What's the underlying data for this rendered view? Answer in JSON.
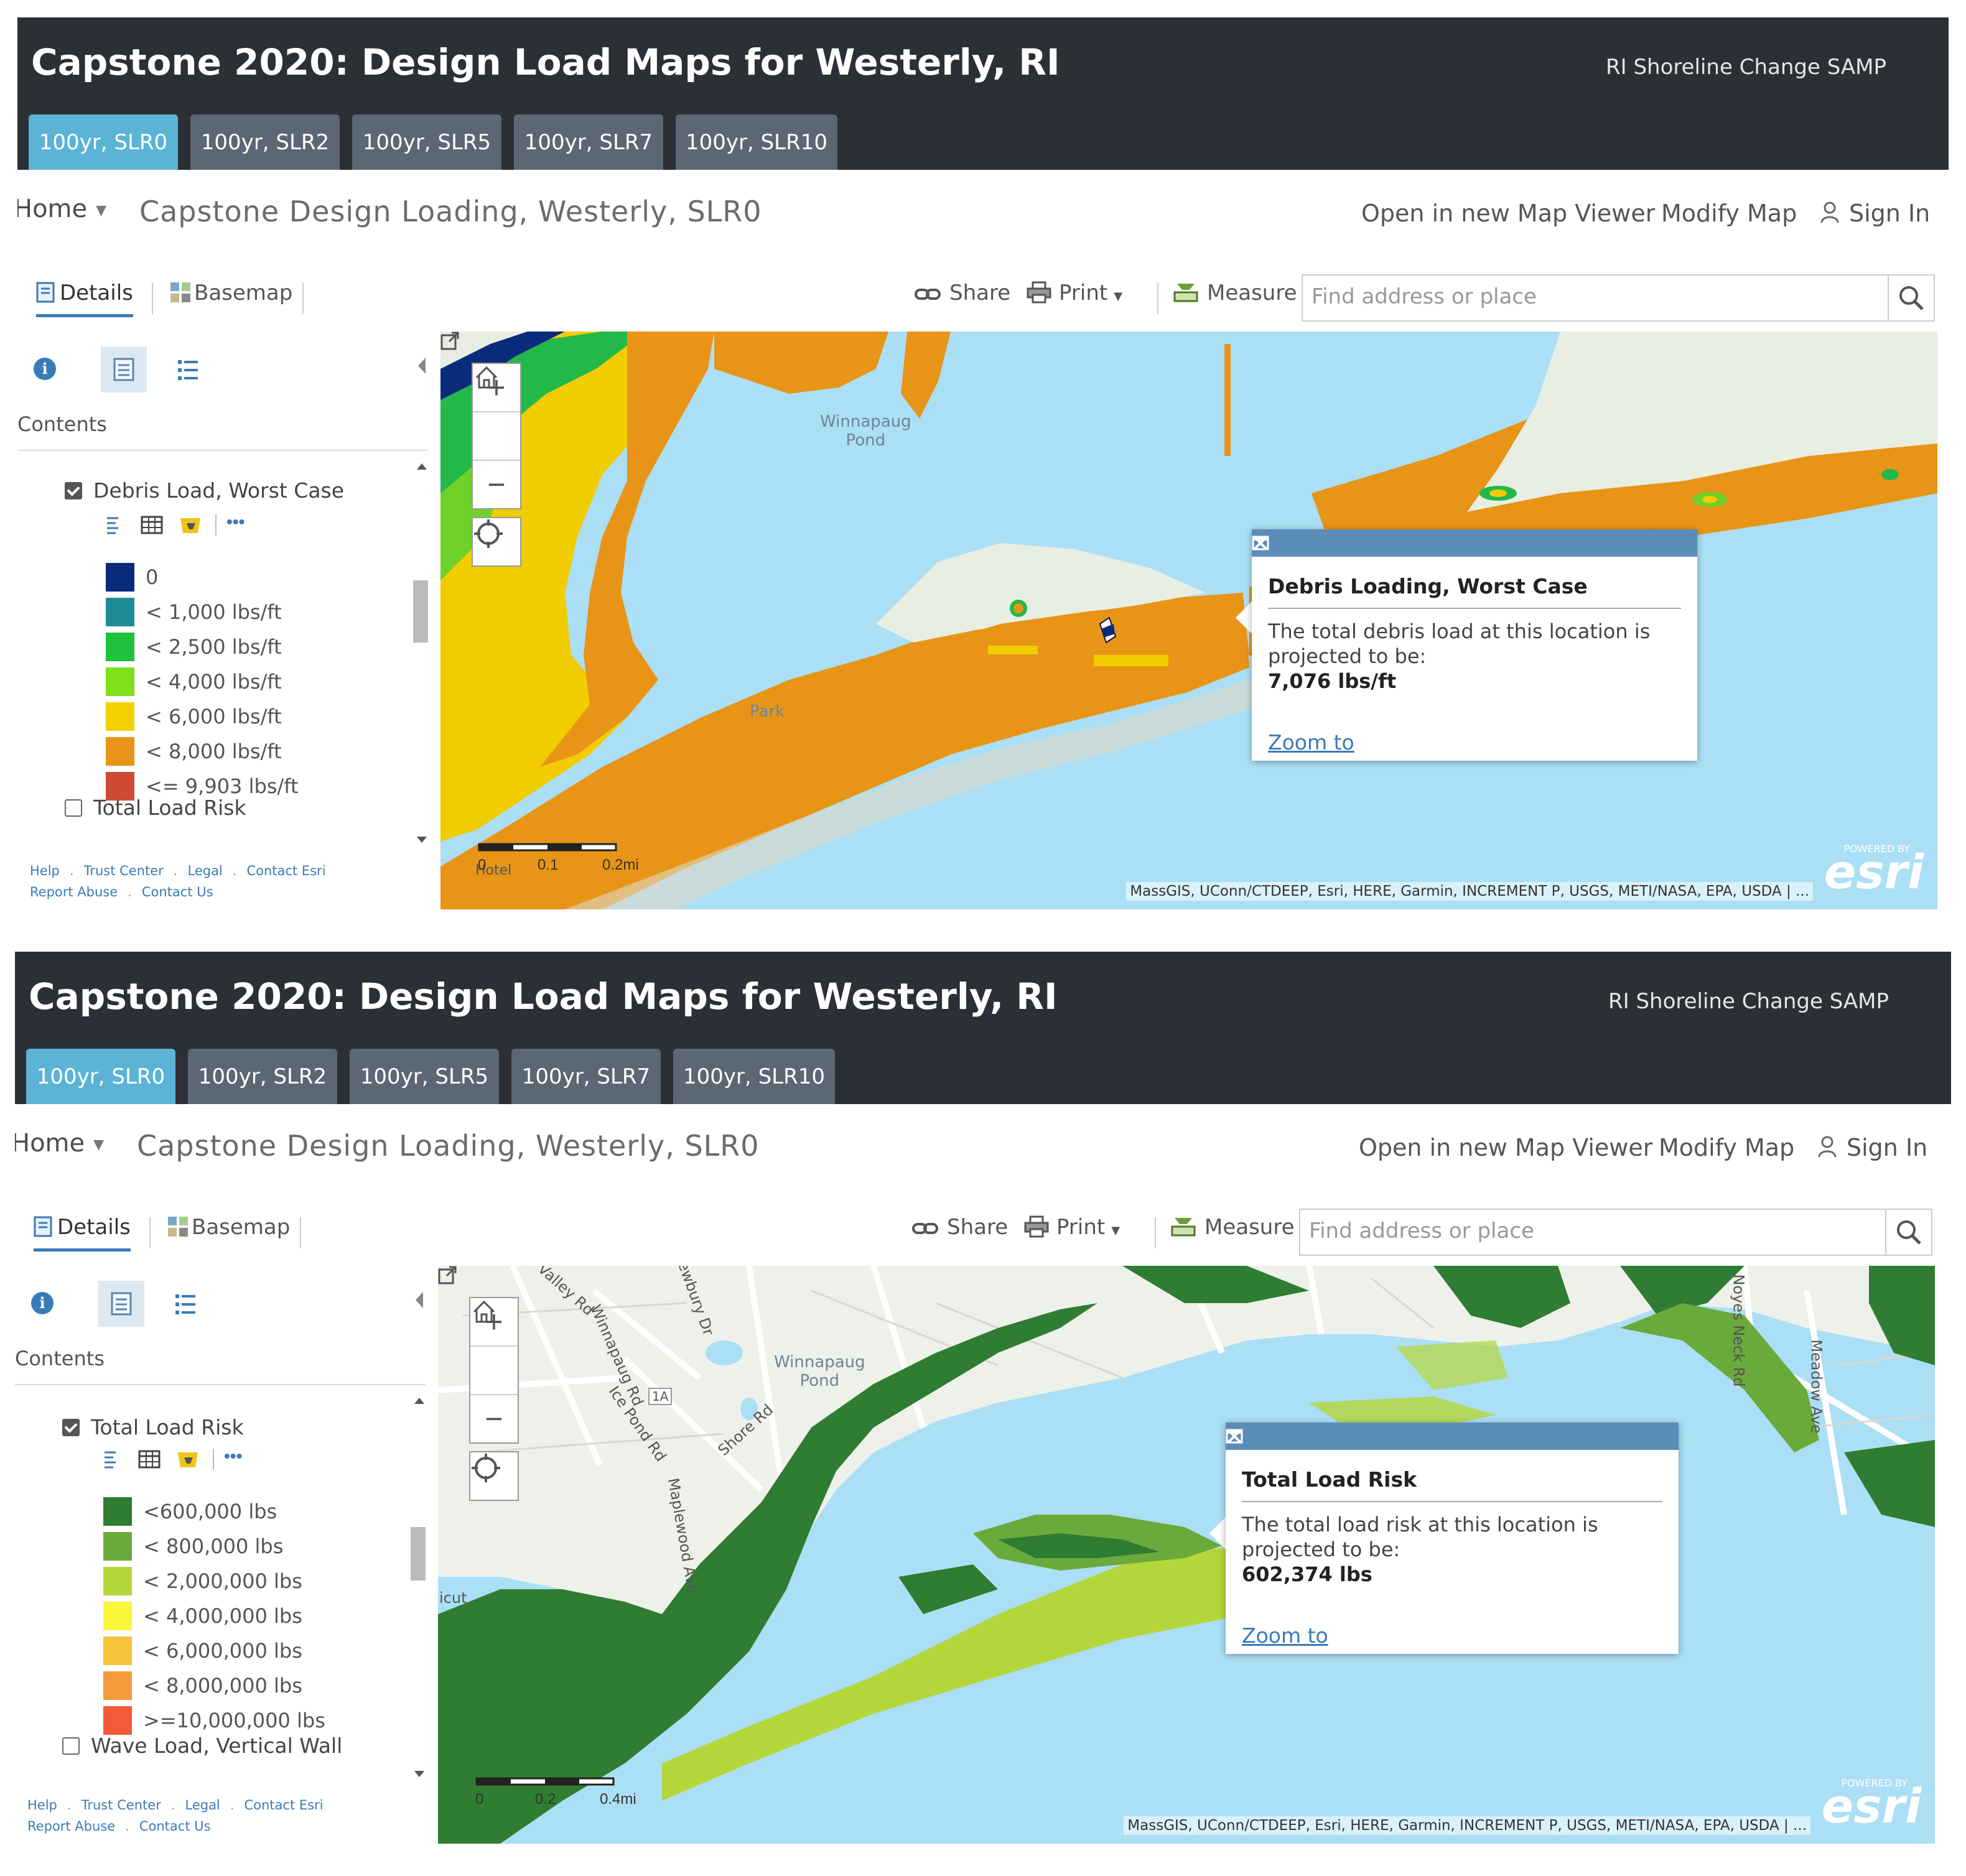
{
  "app": {
    "title": "Capstone 2020: Design Load Maps for Westerly, RI",
    "subtitle": "RI Shoreline Change SAMP",
    "tabs": [
      "100yr, SLR0",
      "100yr, SLR2",
      "100yr, SLR5",
      "100yr, SLR7",
      "100yr, SLR10"
    ],
    "active_tab": "100yr, SLR0"
  },
  "nav": {
    "home": "Home",
    "map_title": "Capstone Design Loading, Westerly, SLR0",
    "open_viewer": "Open in new Map Viewer",
    "modify_map": "Modify Map",
    "sign_in": "Sign In"
  },
  "toolbar": {
    "details": "Details",
    "basemap": "Basemap",
    "share": "Share",
    "print": "Print",
    "measure": "Measure",
    "search_placeholder": "Find address or place"
  },
  "sidebar": {
    "contents": "Contents",
    "footer_links": [
      "Help",
      "Trust Center",
      "Legal",
      "Contact Esri",
      "Report Abuse",
      "Contact Us"
    ]
  },
  "panel1": {
    "layer": "Debris Load, Worst Case",
    "legend": [
      {
        "label": "0",
        "color": "#0a2a7a"
      },
      {
        "label": "< 1,000 lbs/ft",
        "color": "#1e8c96"
      },
      {
        "label": "< 2,500 lbs/ft",
        "color": "#1fc23c"
      },
      {
        "label": "< 4,000 lbs/ft",
        "color": "#7fe01a"
      },
      {
        "label": "< 6,000 lbs/ft",
        "color": "#f5d000"
      },
      {
        "label": "< 8,000 lbs/ft",
        "color": "#e89417"
      },
      {
        "label": "<= 9,903 lbs/ft",
        "color": "#cf4a35"
      }
    ],
    "next_layer": "Total Load Risk",
    "popup": {
      "title": "Debris Loading, Worst Case",
      "text": "The total debris load at this location is projected to be:",
      "value": "7,076 lbs/ft",
      "zoom": "Zoom to"
    },
    "map_labels": {
      "pond": "Winnapaug\nPond",
      "park": "Park",
      "hotel": "Hotel"
    },
    "scale": [
      "0",
      "0.1",
      "0.2mi"
    ]
  },
  "panel2": {
    "layer": "Total Load Risk",
    "legend": [
      {
        "label": "<600,000 lbs",
        "color": "#2e7d32"
      },
      {
        "label": "< 800,000 lbs",
        "color": "#6aaa3a"
      },
      {
        "label": "< 2,000,000 lbs",
        "color": "#b5d63a"
      },
      {
        "label": "< 4,000,000 lbs",
        "color": "#f8f53a"
      },
      {
        "label": "< 6,000,000 lbs",
        "color": "#f7c23a"
      },
      {
        "label": "< 8,000,000 lbs",
        "color": "#f59a3a"
      },
      {
        "label": ">=10,000,000 lbs",
        "color": "#f25a3a"
      }
    ],
    "next_layer": "Wave Load, Vertical Wall",
    "popup": {
      "title": "Total Load Risk",
      "text": "The total load risk at this location is projected to be:",
      "value": "602,374 lbs",
      "zoom": "Zoom to"
    },
    "map_labels": {
      "pond": "Winnapaug\nPond",
      "valley": "Valley Rd",
      "winnapaug_rd": "Winnapaug Rd",
      "shore": "Shore Rd",
      "ice_pond": "Ice Pond Rd",
      "noyes": "Noyes Neck Rd",
      "meadow": "Meadow Ave",
      "route": "1A",
      "maple": "Maplewood Ave",
      "newbury": "Newbury Dr",
      "icut": "icut"
    },
    "scale": [
      "0",
      "0.2",
      "0.4mi"
    ]
  },
  "map": {
    "attribution": "MassGIS, UConn/CTDEEP, Esri, HERE, Garmin, INCREMENT P, USGS, METI/NASA, EPA, USDA | ...",
    "esri": "esri",
    "powered": "POWERED BY"
  }
}
